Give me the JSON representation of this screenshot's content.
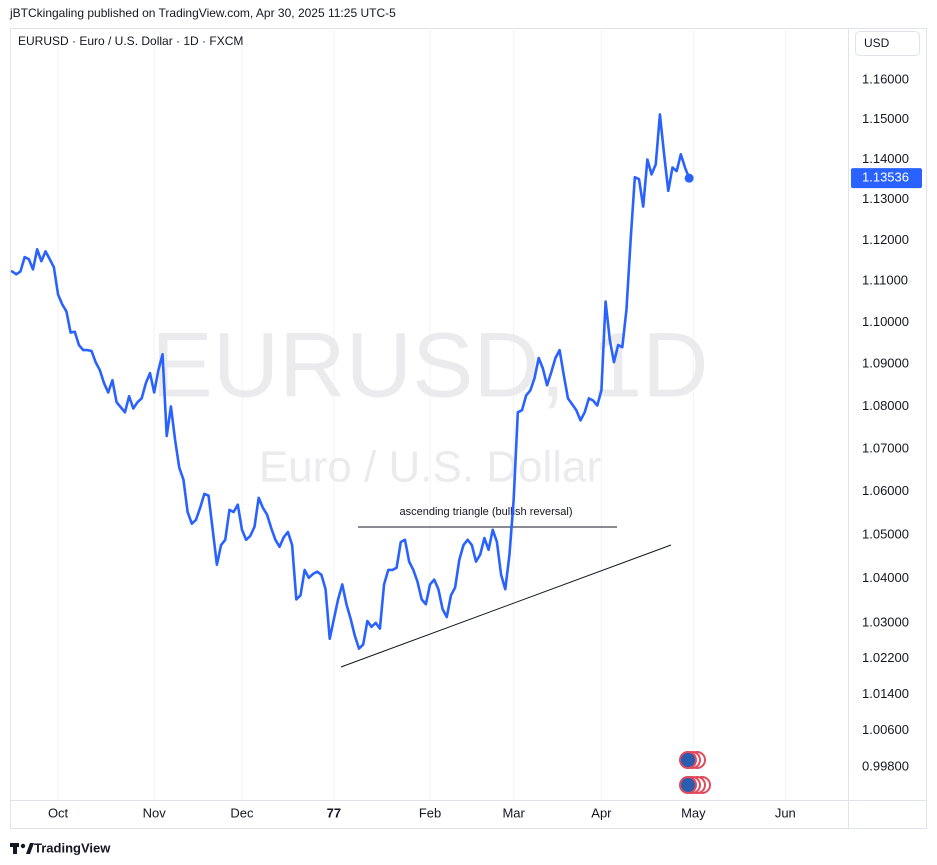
{
  "header": {
    "publisher": "jBTCkingaling published on TradingView.com, Apr 30, 2025 11:25 UTC-5"
  },
  "footer": {
    "brand": "TradingView"
  },
  "chart_data": {
    "type": "line",
    "title": "EURUSD · Euro / U.S. Dollar · 1D · FXCM",
    "currency": "USD",
    "watermark": "EURUSD, 1D",
    "watermark_subtitle": "Euro / U.S. Dollar",
    "log_scale": true,
    "xgrid": true,
    "xlim": [
      -0.5,
      200
    ],
    "xticks": [
      {
        "value": 11,
        "label": "Oct"
      },
      {
        "value": 34,
        "label": "Nov"
      },
      {
        "value": 55,
        "label": "Dec"
      },
      77,
      {
        "value": 100,
        "label": "Feb"
      },
      {
        "value": 120,
        "label": "Mar"
      },
      {
        "value": 141,
        "label": "Apr"
      },
      {
        "value": 163,
        "label": "May"
      },
      {
        "value": 185,
        "label": "Jun"
      }
    ],
    "ylim": [
      0.9908,
      1.1728
    ],
    "yticks": [
      {
        "value": 1.16,
        "label": "1.16000"
      },
      {
        "value": 1.15,
        "label": "1.15000"
      },
      {
        "value": 1.14,
        "label": "1.14000"
      },
      {
        "value": 1.13,
        "label": "1.13000"
      },
      {
        "value": 1.12,
        "label": "1.12000"
      },
      {
        "value": 1.11,
        "label": "1.11000"
      },
      {
        "value": 1.1,
        "label": "1.10000"
      },
      {
        "value": 1.09,
        "label": "1.09000"
      },
      {
        "value": 1.08,
        "label": "1.08000"
      },
      {
        "value": 1.07,
        "label": "1.07000"
      },
      {
        "value": 1.06,
        "label": "1.06000"
      },
      {
        "value": 1.05,
        "label": "1.05000"
      },
      {
        "value": 1.04,
        "label": "1.04000"
      },
      {
        "value": 1.03,
        "label": "1.03000"
      },
      {
        "value": 1.022,
        "label": "1.02200"
      },
      {
        "value": 1.014,
        "label": "1.01400"
      },
      {
        "value": 1.006,
        "label": "1.00600"
      },
      {
        "value": 0.998,
        "label": "0.99800"
      }
    ],
    "series": [
      {
        "name": "EURUSD",
        "color": "#2962ff",
        "values": [
          1.1124,
          1.1117,
          1.1124,
          1.1159,
          1.1154,
          1.1129,
          1.1178,
          1.1149,
          1.1173,
          1.1154,
          1.1134,
          1.1068,
          1.1044,
          1.1027,
          1.0976,
          1.0978,
          1.0946,
          1.0934,
          1.0934,
          1.0932,
          1.0905,
          1.0886,
          1.0855,
          1.0833,
          1.0862,
          1.081,
          1.0798,
          1.0786,
          1.0824,
          1.0795,
          1.081,
          1.0819,
          1.0855,
          1.0879,
          1.0833,
          1.0886,
          1.0924,
          1.073,
          1.08,
          1.0721,
          1.0656,
          1.0628,
          1.0553,
          1.0526,
          1.0535,
          1.0563,
          1.0595,
          1.0591,
          1.0512,
          1.0432,
          1.0477,
          1.0489,
          1.0558,
          1.0553,
          1.057,
          1.0512,
          1.0489,
          1.0498,
          1.0519,
          1.0586,
          1.0563,
          1.0547,
          1.0516,
          1.0489,
          1.0473,
          1.0495,
          1.0507,
          1.0477,
          1.0353,
          1.0362,
          1.042,
          1.0402,
          1.0411,
          1.0416,
          1.0409,
          1.0376,
          1.0264,
          1.0309,
          1.0353,
          1.0387,
          1.0342,
          1.0309,
          1.0271,
          1.0242,
          1.0251,
          1.0304,
          1.0291,
          1.03,
          1.0287,
          1.0387,
          1.042,
          1.042,
          1.0425,
          1.0484,
          1.0489,
          1.0439,
          1.042,
          1.0393,
          1.0353,
          1.0342,
          1.0387,
          1.0398,
          1.0376,
          1.0331,
          1.0313,
          1.0362,
          1.038,
          1.0443,
          1.0477,
          1.0489,
          1.0477,
          1.0439,
          1.0455,
          1.0493,
          1.0466,
          1.0512,
          1.0484,
          1.0409,
          1.0376,
          1.0455,
          1.0581,
          1.0786,
          1.0791,
          1.0826,
          1.0838,
          1.0867,
          1.0915,
          1.089,
          1.085,
          1.0881,
          1.0915,
          1.0934,
          1.0874,
          1.0819,
          1.0805,
          1.0791,
          1.0767,
          1.0786,
          1.0819,
          1.0814,
          1.0802,
          1.0838,
          1.1051,
          1.0959,
          1.0905,
          1.0946,
          1.0941,
          1.1032,
          1.1202,
          1.1356,
          1.1351,
          1.1283,
          1.14,
          1.1363,
          1.1388,
          1.1513,
          1.1413,
          1.1322,
          1.138,
          1.1371,
          1.1413,
          1.138,
          1.13536
        ]
      }
    ],
    "last_value_label": "1.13536",
    "annotations": [
      {
        "text": "ascending triangle (bullish reversal)"
      }
    ]
  }
}
